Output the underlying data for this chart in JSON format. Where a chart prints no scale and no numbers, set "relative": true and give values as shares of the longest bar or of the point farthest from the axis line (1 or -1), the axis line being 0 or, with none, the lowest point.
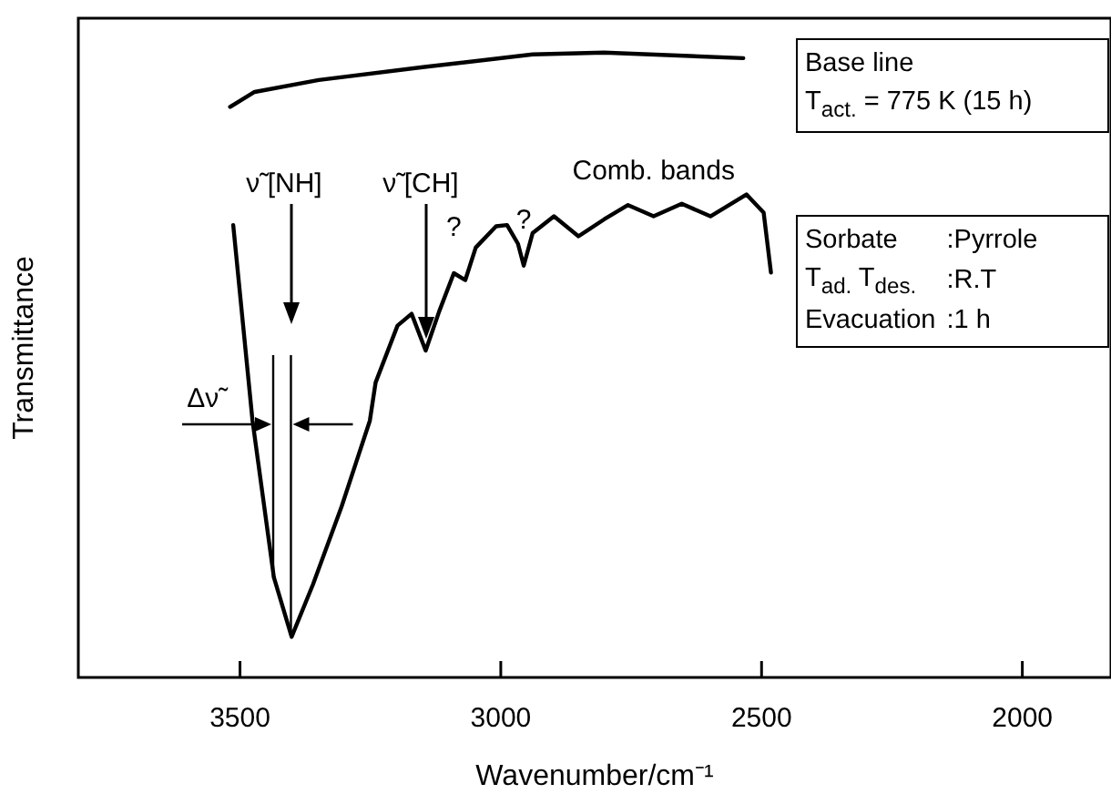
{
  "chart_data": {
    "type": "line",
    "relative": true,
    "xlabel": "Wavenumber/cm⁻¹",
    "ylabel": "Transmittance",
    "xlim": [
      3810,
      1830
    ],
    "xticks": [
      3500,
      3000,
      2500,
      2000
    ],
    "series": [
      {
        "color": "#000000",
        "x": [
          3519,
          3472,
          3349,
          3146,
          2939,
          2802,
          2535
        ],
        "values": [
          0.913,
          0.937,
          0.956,
          0.977,
          0.997,
          1.0,
          0.991
        ]
      },
      {
        "color": "#000000",
        "x": [
          3513,
          3476,
          3435,
          3401,
          3360,
          3305,
          3251,
          3240,
          3198,
          3171,
          3144,
          3118,
          3090,
          3068,
          3048,
          3009,
          2988,
          2967,
          2956,
          2939,
          2898,
          2851,
          2802,
          2756,
          2707,
          2653,
          2598,
          2529,
          2496,
          2482
        ],
        "values": [
          0.724,
          0.411,
          0.16,
          0.065,
          0.149,
          0.274,
          0.411,
          0.472,
          0.563,
          0.582,
          0.523,
          0.586,
          0.647,
          0.636,
          0.688,
          0.722,
          0.724,
          0.694,
          0.659,
          0.711,
          0.738,
          0.706,
          0.733,
          0.756,
          0.738,
          0.758,
          0.738,
          0.773,
          0.744,
          0.648
        ]
      }
    ],
    "annotations": [
      "ν̃ [NH]",
      "ν̃ [CH]",
      {
        "text": "?",
        "x": 3090,
        "y": 0.647
      },
      {
        "text": "?",
        "x": 2956,
        "y": 0.659
      },
      {
        "text": "Comb. bands",
        "x": 2707,
        "y": 0.738
      },
      "Base line\nT$_{act.}$ = 775 K (15 h)",
      "Sorbate :Pyrrole\nT$_{ad.}$ T$_{des.}$ :R.T\nEvacuation :1 h"
    ],
    "ref_lines": [
      {
        "axis": "x",
        "value": 3435,
        "label": "Δν̃"
      },
      {
        "axis": "x",
        "value": 3401
      }
    ]
  }
}
